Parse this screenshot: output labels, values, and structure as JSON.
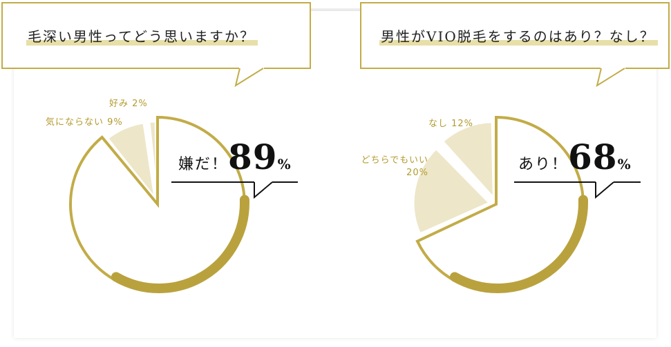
{
  "colors": {
    "gold": "#c2ac48",
    "gold_dark": "#b9a23e",
    "cream": "#ede6c8",
    "label": "#b39a2e"
  },
  "chart_data": [
    {
      "type": "pie",
      "title": "毛深い男性ってどう思いますか？",
      "series": [
        {
          "name": "嫌だ！",
          "value": 89
        },
        {
          "name": "気にならない",
          "value": 9
        },
        {
          "name": "好み",
          "value": 2
        }
      ],
      "labels": [
        {
          "text": "好み 2%"
        },
        {
          "text": "気にならない 9%"
        }
      ],
      "highlight": {
        "word": "嫌だ！",
        "number": "89",
        "unit": "%"
      }
    },
    {
      "type": "pie",
      "title": "男性がVIO脱毛をするのはあり？なし？",
      "series": [
        {
          "name": "あり！",
          "value": 68
        },
        {
          "name": "どちらでもいい",
          "value": 20
        },
        {
          "name": "なし",
          "value": 12
        }
      ],
      "labels": [
        {
          "text": "なし 12%"
        },
        {
          "text_line1": "どちらでもいい",
          "text_line2": "20%"
        }
      ],
      "highlight": {
        "word": "あり！",
        "number": "68",
        "unit": "%"
      }
    }
  ]
}
